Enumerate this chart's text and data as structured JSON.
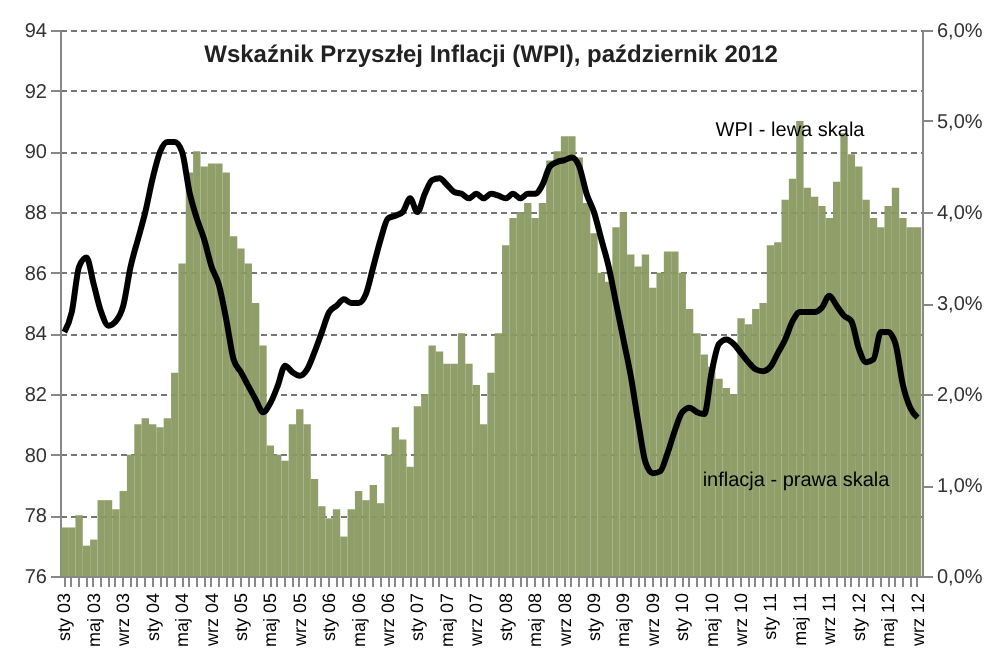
{
  "chart_data": {
    "type": "bar",
    "title": "Wskaźnik  Przyszłej Inflacji (WPI), październik 2012",
    "categories": [
      "sty 03",
      null,
      null,
      null,
      "maj 03",
      null,
      null,
      null,
      "wrz 03",
      null,
      null,
      null,
      "sty 04",
      null,
      null,
      null,
      "maj 04",
      null,
      null,
      null,
      "wrz 04",
      null,
      null,
      null,
      "sty 05",
      null,
      null,
      null,
      "maj 05",
      null,
      null,
      null,
      "wrz 05",
      null,
      null,
      null,
      "sty 06",
      null,
      null,
      null,
      "maj 06",
      null,
      null,
      null,
      "wrz 06",
      null,
      null,
      null,
      "sty 07",
      null,
      null,
      null,
      "maj 07",
      null,
      null,
      null,
      "wrz 07",
      null,
      null,
      null,
      "sty 08",
      null,
      null,
      null,
      "maj 08",
      null,
      null,
      null,
      "wrz 08",
      null,
      null,
      null,
      "sty 09",
      null,
      null,
      null,
      "maj 09",
      null,
      null,
      null,
      "wrz 09",
      null,
      null,
      null,
      "sty 10",
      null,
      null,
      null,
      "maj 10",
      null,
      null,
      null,
      "wrz 10",
      null,
      null,
      null,
      "sty 11",
      null,
      null,
      null,
      "maj 11",
      null,
      null,
      null,
      "wrz 11",
      null,
      null,
      null,
      "sty 12",
      null,
      null,
      null,
      "maj 12",
      null,
      null,
      null,
      "wrz 12"
    ],
    "series": [
      {
        "name": "WPI - lewa skala",
        "color": "#8a9a62",
        "values": [
          77.6,
          77.6,
          78.0,
          77.0,
          77.2,
          78.5,
          78.5,
          78.2,
          78.8,
          80.0,
          81.0,
          81.2,
          81.0,
          80.9,
          81.2,
          82.7,
          86.3,
          89.3,
          90.0,
          89.5,
          89.6,
          89.6,
          89.3,
          87.2,
          86.8,
          86.3,
          85.0,
          83.6,
          80.3,
          80.0,
          79.8,
          81.0,
          81.5,
          81.0,
          79.2,
          78.3,
          77.9,
          78.2,
          77.3,
          78.2,
          78.8,
          78.5,
          79.0,
          78.4,
          80.0,
          80.9,
          80.5,
          79.6,
          81.6,
          82.0,
          83.6,
          83.4,
          83.0,
          83.0,
          84.0,
          83.0,
          82.3,
          81.0,
          82.7,
          84.0,
          86.9,
          87.8,
          88.0,
          88.3,
          87.8,
          88.3,
          89.7,
          90.0,
          90.5,
          90.5,
          89.8,
          88.3,
          87.3,
          86.0,
          85.7,
          87.5,
          88.0,
          86.6,
          86.2,
          86.6,
          85.5,
          86.0,
          86.7,
          86.7,
          86.0,
          84.8,
          84.0,
          83.3,
          82.9,
          82.5,
          82.2,
          82.0,
          84.5,
          84.3,
          84.8,
          85.0,
          86.9,
          87.0,
          88.4,
          89.1,
          91.0,
          88.8,
          88.5,
          88.2,
          87.8,
          89.0,
          90.6,
          89.9,
          89.5,
          88.4,
          87.8,
          87.5,
          88.2,
          88.8,
          87.8,
          87.5,
          87.5
        ]
      },
      {
        "name": "inflacja - prawa skala",
        "type": "line",
        "axis": "y2",
        "color": "#000000",
        "values": [
          2.68,
          2.9,
          3.4,
          3.5,
          3.2,
          2.9,
          2.75,
          2.8,
          2.97,
          3.4,
          3.7,
          4.0,
          4.37,
          4.66,
          4.77,
          4.77,
          4.66,
          4.22,
          3.93,
          3.7,
          3.4,
          3.2,
          2.82,
          2.38,
          2.24,
          2.09,
          1.94,
          1.8,
          1.9,
          2.09,
          2.31,
          2.24,
          2.2,
          2.27,
          2.46,
          2.68,
          2.9,
          2.97,
          3.04,
          3.0,
          3.0,
          3.1,
          3.4,
          3.7,
          3.93,
          3.96,
          4.0,
          4.15,
          4.0,
          4.2,
          4.35,
          4.37,
          4.3,
          4.22,
          4.2,
          4.15,
          4.2,
          4.15,
          4.2,
          4.18,
          4.15,
          4.2,
          4.15,
          4.2,
          4.2,
          4.3,
          4.5,
          4.55,
          4.57,
          4.6,
          4.5,
          4.2,
          4.0,
          3.7,
          3.4,
          3.0,
          2.6,
          2.2,
          1.7,
          1.25,
          1.13,
          1.15,
          1.35,
          1.6,
          1.8,
          1.85,
          1.8,
          1.78,
          2.24,
          2.55,
          2.6,
          2.55,
          2.45,
          2.35,
          2.27,
          2.25,
          2.3,
          2.45,
          2.6,
          2.8,
          2.9,
          2.9,
          2.9,
          2.95,
          3.08,
          2.97,
          2.86,
          2.8,
          2.5,
          2.35,
          2.38,
          2.68,
          2.68,
          2.55,
          2.1,
          1.85,
          1.74
        ]
      }
    ],
    "ylim": [
      76,
      94
    ],
    "yticks": [
      76,
      78,
      80,
      82,
      84,
      86,
      88,
      90,
      92,
      94
    ],
    "y2lim": [
      0,
      6
    ],
    "y2ticks": [
      {
        "value": 0,
        "label": "0,0%"
      },
      {
        "value": 1,
        "label": "1,0%"
      },
      {
        "value": 2,
        "label": "2,0%"
      },
      {
        "value": 3,
        "label": "3,0%"
      },
      {
        "value": 4,
        "label": "4,0%"
      },
      {
        "value": 5,
        "label": "5,0%"
      },
      {
        "value": 6,
        "label": "6,0%"
      }
    ],
    "grid": "y"
  }
}
